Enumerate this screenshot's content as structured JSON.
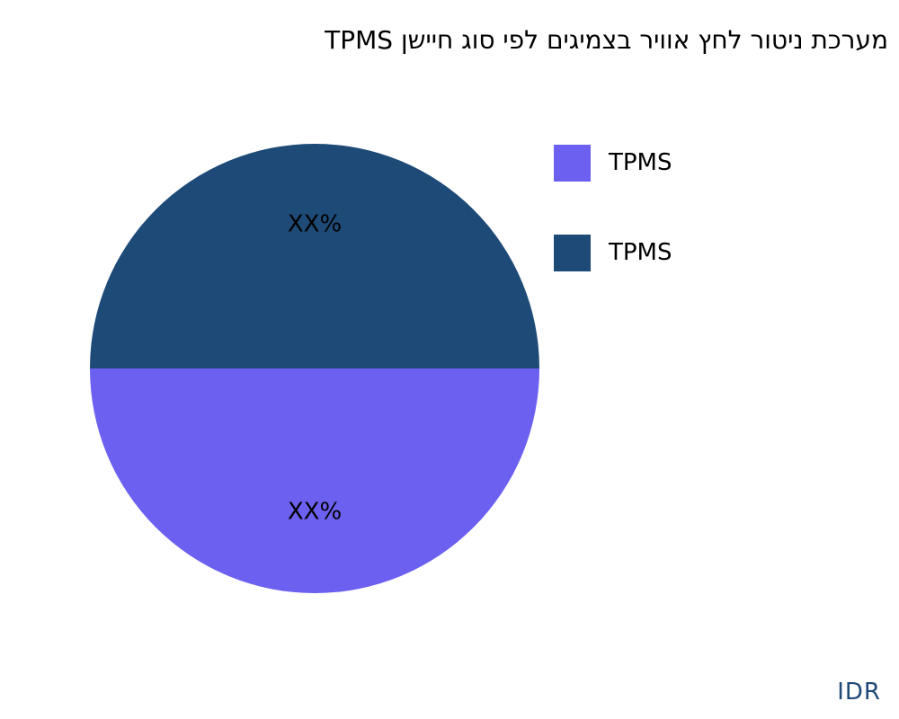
{
  "chart_data": {
    "type": "pie",
    "title": "מערכת ניטור לחץ אוויר בצמיגים לפי סוג חיישן TPMS",
    "slices": [
      {
        "name": "TPMS",
        "value": 50,
        "label": "XX%",
        "color": "#6c60f0"
      },
      {
        "name": "TPMS",
        "value": 50,
        "label": "XX%",
        "color": "#1e4a78"
      }
    ],
    "legend_position": "right"
  },
  "source": {
    "label": "IDR",
    "color": "#1e4a78"
  }
}
